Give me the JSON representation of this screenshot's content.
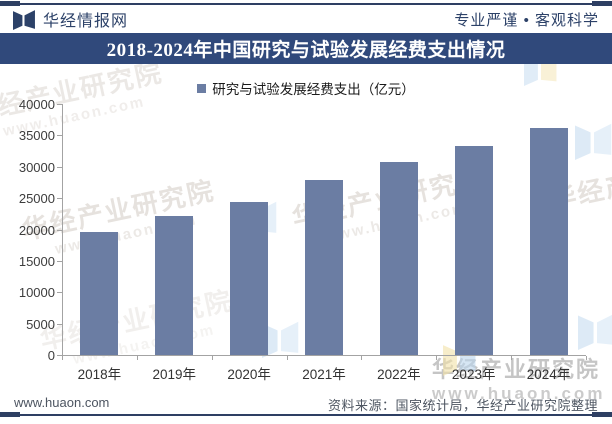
{
  "header": {
    "site_name": "华经情报网",
    "tagline": "专业严谨 • 客观科学"
  },
  "legend": {
    "label": "研究与试验发展经费支出（亿元）"
  },
  "chart_data": {
    "type": "bar",
    "title": "2018-2024年中国研究与试验发展经费支出情况",
    "categories": [
      "2018年",
      "2019年",
      "2020年",
      "2021年",
      "2022年",
      "2023年",
      "2024年"
    ],
    "values": [
      19678,
      22144,
      24393,
      27956,
      30783,
      33357,
      36130
    ],
    "series_name": "研究与试验发展经费支出（亿元）",
    "xlabel": "",
    "ylabel": "",
    "ylim": [
      0,
      40000
    ],
    "yticks": [
      0,
      5000,
      10000,
      15000,
      20000,
      25000,
      30000,
      35000,
      40000
    ],
    "grid": false,
    "legend_position": "top-center",
    "bar_color": "#6b7da3"
  },
  "footer": {
    "website": "www.huaon.com",
    "source": "资料来源：国家统计局，华经产业研究院整理"
  },
  "watermark": {
    "name": "华经产业研究院",
    "url": "www.huaon.com"
  },
  "colors": {
    "accent_navy": "#30497b",
    "bar": "#6b7da3",
    "rule": "#2e3f63"
  }
}
